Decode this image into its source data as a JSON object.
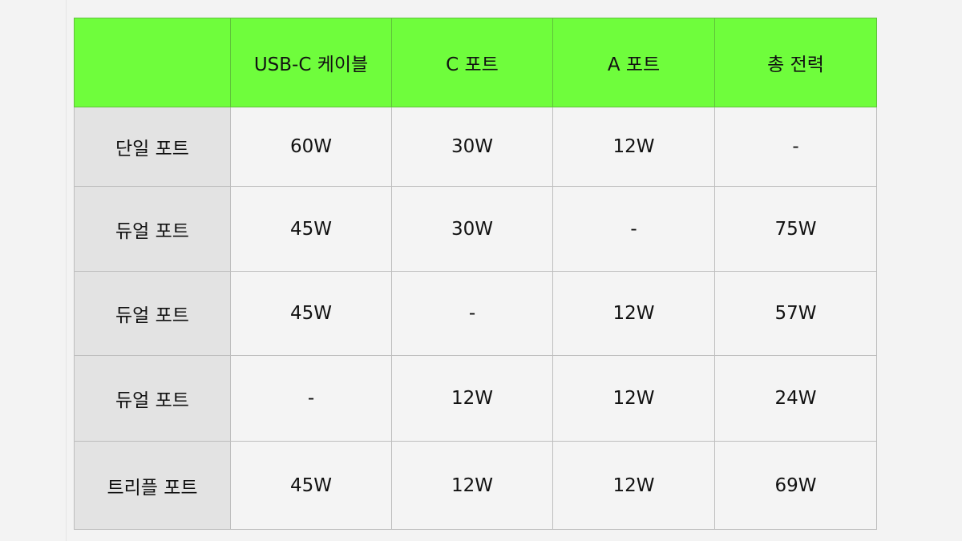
{
  "colors": {
    "header": "#6ffd3c",
    "row_header": "#e3e3e3",
    "cell": "#f4f4f4"
  },
  "headers": [
    "",
    "USB-C 케이블",
    "C 포트",
    "A 포트",
    "총 전력"
  ],
  "rows": [
    {
      "label": "단일 포트",
      "cells": [
        "60W",
        "30W",
        "12W",
        "-"
      ]
    },
    {
      "label": "듀얼 포트",
      "cells": [
        "45W",
        "30W",
        "-",
        "75W"
      ]
    },
    {
      "label": "듀얼 포트",
      "cells": [
        "45W",
        "-",
        "12W",
        "57W"
      ]
    },
    {
      "label": "듀얼 포트",
      "cells": [
        "-",
        "12W",
        "12W",
        "24W"
      ]
    },
    {
      "label": "트리플 포트",
      "cells": [
        "45W",
        "12W",
        "12W",
        "69W"
      ]
    }
  ]
}
